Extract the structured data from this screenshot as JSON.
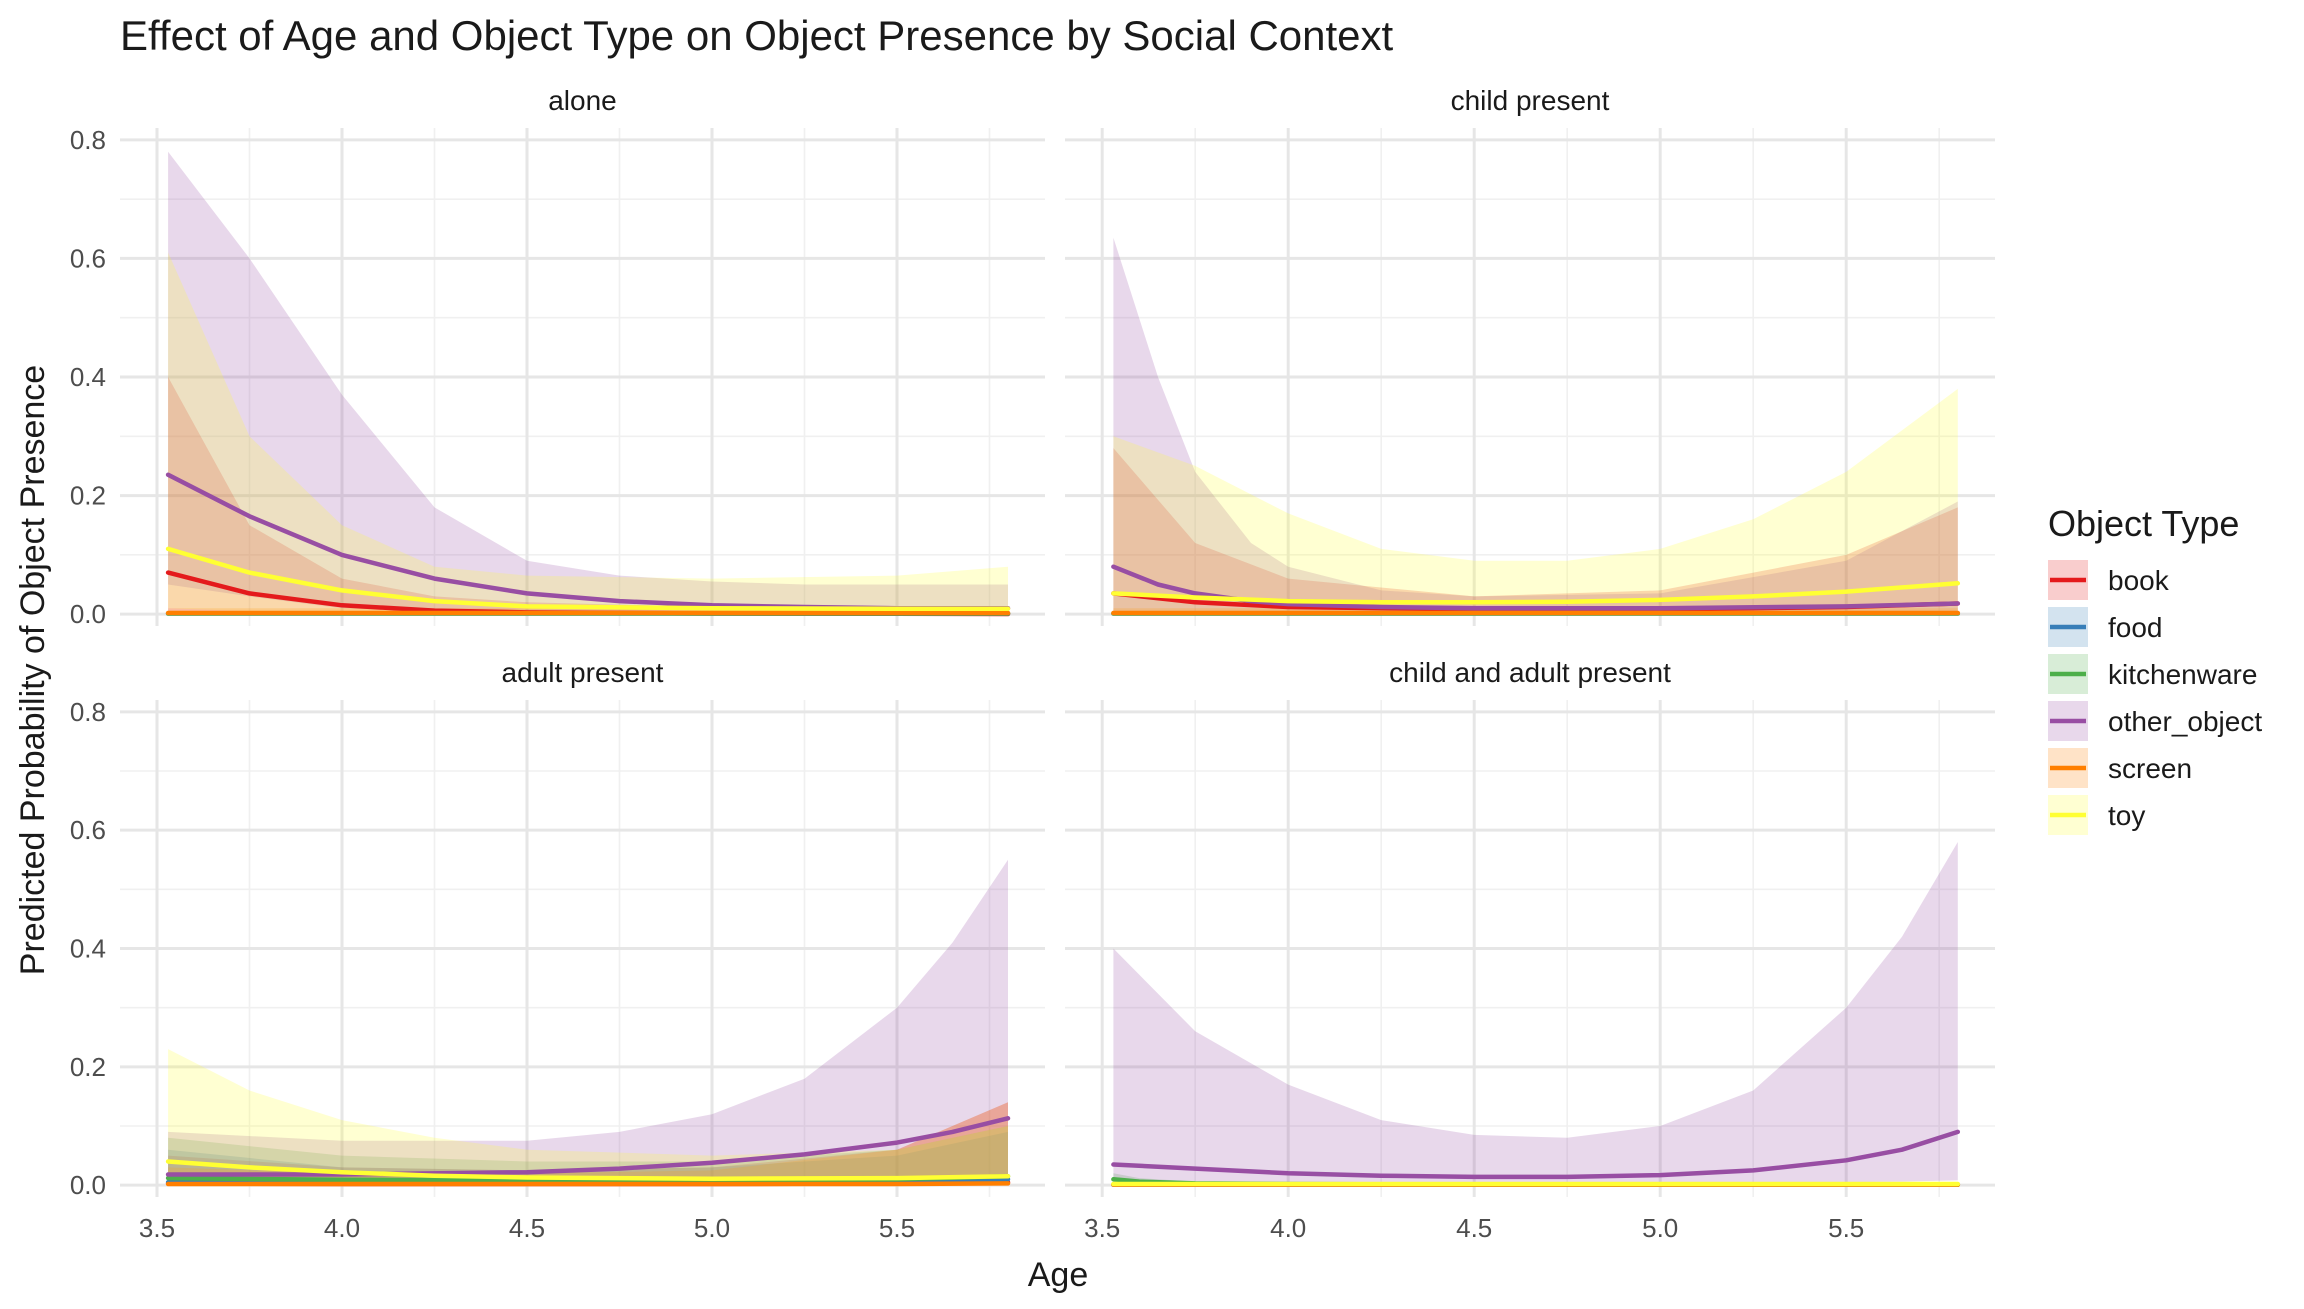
{
  "chart_data": {
    "type": "line",
    "title": "Effect of Age and Object Type on Object Presence by Social Context",
    "xlabel": "Age",
    "ylabel": "Predicted Probability of Object Presence",
    "xlim": [
      3.4,
      5.9
    ],
    "ylim": [
      -0.02,
      0.82
    ],
    "x_ticks": [
      3.5,
      4.0,
      4.5,
      5.0,
      5.5
    ],
    "x_tick_labels": [
      "3.5",
      "4.0",
      "4.5",
      "5.0",
      "5.5"
    ],
    "y_ticks": [
      0.0,
      0.2,
      0.4,
      0.6,
      0.8
    ],
    "y_tick_labels": [
      "0.0",
      "0.2",
      "0.4",
      "0.6",
      "0.8"
    ],
    "grid": true,
    "legend": {
      "title": "Object Type",
      "position": "right",
      "entries": [
        {
          "name": "book",
          "color": "#e41a1c"
        },
        {
          "name": "food",
          "color": "#377eb8"
        },
        {
          "name": "kitchenware",
          "color": "#4daf4a"
        },
        {
          "name": "other_object",
          "color": "#984ea3"
        },
        {
          "name": "screen",
          "color": "#ff7f00"
        },
        {
          "name": "toy",
          "color": "#ffff33"
        }
      ]
    },
    "band_opacity": 0.22,
    "facets": [
      {
        "label": "alone",
        "series": [
          {
            "name": "book",
            "x": [
              3.53,
              3.75,
              4.0,
              4.25,
              4.5,
              5.0,
              5.5,
              5.8
            ],
            "y": [
              0.07,
              0.035,
              0.015,
              0.006,
              0.003,
              0.001,
              0.0005,
              0.0003
            ],
            "lower": [
              0,
              0,
              0,
              0,
              0,
              0,
              0,
              0
            ],
            "upper": [
              0.4,
              0.15,
              0.06,
              0.03,
              0.02,
              0.012,
              0.01,
              0.01
            ]
          },
          {
            "name": "food",
            "x": [
              3.53,
              4.0,
              4.5,
              5.0,
              5.5,
              5.8
            ],
            "y": [
              0.001,
              0.001,
              0.001,
              0.001,
              0.001,
              0.001
            ],
            "lower": [
              0,
              0,
              0,
              0,
              0,
              0
            ],
            "upper": [
              0.005,
              0.004,
              0.004,
              0.004,
              0.004,
              0.004
            ]
          },
          {
            "name": "kitchenware",
            "x": [
              3.53,
              4.0,
              4.5,
              5.0,
              5.5,
              5.8
            ],
            "y": [
              0.001,
              0.001,
              0.001,
              0.001,
              0.001,
              0.001
            ],
            "lower": [
              0,
              0,
              0,
              0,
              0,
              0
            ],
            "upper": [
              0.005,
              0.004,
              0.004,
              0.004,
              0.004,
              0.004
            ]
          },
          {
            "name": "other_object",
            "x": [
              3.53,
              3.75,
              4.0,
              4.25,
              4.5,
              4.75,
              5.0,
              5.25,
              5.5,
              5.8
            ],
            "y": [
              0.235,
              0.165,
              0.1,
              0.06,
              0.035,
              0.022,
              0.015,
              0.012,
              0.01,
              0.01
            ],
            "lower": [
              0.05,
              0.03,
              0.01,
              0.005,
              0.003,
              0.002,
              0.002,
              0.001,
              0.001,
              0.001
            ],
            "upper": [
              0.78,
              0.6,
              0.37,
              0.18,
              0.09,
              0.065,
              0.055,
              0.05,
              0.05,
              0.05
            ]
          },
          {
            "name": "screen",
            "x": [
              3.53,
              4.0,
              4.5,
              5.0,
              5.5,
              5.8
            ],
            "y": [
              0.002,
              0.002,
              0.002,
              0.002,
              0.002,
              0.002
            ],
            "lower": [
              0,
              0,
              0,
              0,
              0,
              0
            ],
            "upper": [
              0.01,
              0.01,
              0.01,
              0.01,
              0.01,
              0.01
            ]
          },
          {
            "name": "toy",
            "x": [
              3.53,
              3.75,
              4.0,
              4.25,
              4.5,
              5.0,
              5.5,
              5.8
            ],
            "y": [
              0.11,
              0.07,
              0.04,
              0.022,
              0.013,
              0.01,
              0.009,
              0.009
            ],
            "lower": [
              0.01,
              0.005,
              0.003,
              0.002,
              0.001,
              0.001,
              0.001,
              0.001
            ],
            "upper": [
              0.61,
              0.3,
              0.15,
              0.08,
              0.065,
              0.06,
              0.065,
              0.08
            ]
          }
        ]
      },
      {
        "label": "child present",
        "series": [
          {
            "name": "book",
            "x": [
              3.53,
              3.75,
              4.0,
              4.5,
              5.0,
              5.5,
              5.8
            ],
            "y": [
              0.035,
              0.02,
              0.012,
              0.008,
              0.008,
              0.012,
              0.018
            ],
            "lower": [
              0,
              0,
              0,
              0,
              0,
              0,
              0
            ],
            "upper": [
              0.28,
              0.12,
              0.06,
              0.03,
              0.04,
              0.1,
              0.18
            ]
          },
          {
            "name": "food",
            "x": [
              3.53,
              4.0,
              4.5,
              5.0,
              5.5,
              5.8
            ],
            "y": [
              0.001,
              0.001,
              0.001,
              0.001,
              0.001,
              0.001
            ],
            "lower": [
              0,
              0,
              0,
              0,
              0,
              0
            ],
            "upper": [
              0.005,
              0.004,
              0.004,
              0.004,
              0.004,
              0.004
            ]
          },
          {
            "name": "kitchenware",
            "x": [
              3.53,
              4.0,
              4.5,
              5.0,
              5.5,
              5.8
            ],
            "y": [
              0.001,
              0.001,
              0.001,
              0.001,
              0.001,
              0.001
            ],
            "lower": [
              0,
              0,
              0,
              0,
              0,
              0
            ],
            "upper": [
              0.005,
              0.004,
              0.004,
              0.004,
              0.004,
              0.004
            ]
          },
          {
            "name": "other_object",
            "x": [
              3.53,
              3.65,
              3.75,
              3.9,
              4.0,
              4.25,
              4.5,
              5.0,
              5.5,
              5.8
            ],
            "y": [
              0.08,
              0.05,
              0.035,
              0.022,
              0.017,
              0.012,
              0.01,
              0.01,
              0.013,
              0.018
            ],
            "lower": [
              0.005,
              0.003,
              0.002,
              0.001,
              0.001,
              0.001,
              0.001,
              0.001,
              0.001,
              0.001
            ],
            "upper": [
              0.635,
              0.4,
              0.24,
              0.12,
              0.08,
              0.04,
              0.03,
              0.035,
              0.09,
              0.19
            ]
          },
          {
            "name": "screen",
            "x": [
              3.53,
              4.0,
              4.5,
              5.0,
              5.5,
              5.8
            ],
            "y": [
              0.002,
              0.002,
              0.002,
              0.002,
              0.002,
              0.002
            ],
            "lower": [
              0,
              0,
              0,
              0,
              0,
              0
            ],
            "upper": [
              0.01,
              0.01,
              0.01,
              0.01,
              0.01,
              0.01
            ]
          },
          {
            "name": "toy",
            "x": [
              3.53,
              3.75,
              4.0,
              4.25,
              4.5,
              4.75,
              5.0,
              5.25,
              5.5,
              5.8
            ],
            "y": [
              0.035,
              0.028,
              0.022,
              0.02,
              0.02,
              0.021,
              0.024,
              0.03,
              0.038,
              0.052
            ],
            "lower": [
              0.003,
              0.003,
              0.003,
              0.003,
              0.003,
              0.003,
              0.003,
              0.003,
              0.003,
              0.004
            ],
            "upper": [
              0.3,
              0.25,
              0.17,
              0.11,
              0.09,
              0.09,
              0.11,
              0.16,
              0.24,
              0.38
            ]
          }
        ]
      },
      {
        "label": "adult present",
        "series": [
          {
            "name": "book",
            "x": [
              3.53,
              4.0,
              4.5,
              5.0,
              5.5,
              5.8
            ],
            "y": [
              0.003,
              0.002,
              0.002,
              0.002,
              0.003,
              0.005
            ],
            "lower": [
              0,
              0,
              0,
              0,
              0,
              0
            ],
            "upper": [
              0.05,
              0.03,
              0.025,
              0.03,
              0.06,
              0.14
            ]
          },
          {
            "name": "food",
            "x": [
              3.53,
              4.0,
              4.5,
              5.0,
              5.5,
              5.8
            ],
            "y": [
              0.005,
              0.004,
              0.004,
              0.004,
              0.006,
              0.01
            ],
            "lower": [
              0,
              0,
              0,
              0,
              0,
              0
            ],
            "upper": [
              0.06,
              0.03,
              0.025,
              0.03,
              0.05,
              0.09
            ]
          },
          {
            "name": "kitchenware",
            "x": [
              3.53,
              4.0,
              4.5,
              5.0,
              5.5,
              5.8
            ],
            "y": [
              0.012,
              0.009,
              0.008,
              0.008,
              0.01,
              0.015
            ],
            "lower": [
              0.001,
              0.001,
              0.001,
              0.001,
              0.001,
              0.001
            ],
            "upper": [
              0.08,
              0.05,
              0.04,
              0.04,
              0.06,
              0.1
            ]
          },
          {
            "name": "other_object",
            "x": [
              3.53,
              4.0,
              4.5,
              4.75,
              5.0,
              5.25,
              5.5,
              5.65,
              5.8
            ],
            "y": [
              0.018,
              0.018,
              0.022,
              0.028,
              0.038,
              0.052,
              0.072,
              0.09,
              0.113
            ],
            "lower": [
              0.003,
              0.004,
              0.006,
              0.008,
              0.01,
              0.012,
              0.013,
              0.014,
              0.015
            ],
            "upper": [
              0.09,
              0.075,
              0.075,
              0.09,
              0.12,
              0.18,
              0.3,
              0.41,
              0.55
            ]
          },
          {
            "name": "screen",
            "x": [
              3.53,
              4.0,
              4.5,
              5.0,
              5.5,
              5.8
            ],
            "y": [
              0.002,
              0.002,
              0.002,
              0.002,
              0.002,
              0.003
            ],
            "lower": [
              0,
              0,
              0,
              0,
              0,
              0
            ],
            "upper": [
              0.03,
              0.02,
              0.02,
              0.025,
              0.06,
              0.14
            ]
          },
          {
            "name": "toy",
            "x": [
              3.53,
              3.75,
              4.0,
              4.25,
              4.5,
              5.0,
              5.5,
              5.8
            ],
            "y": [
              0.04,
              0.03,
              0.022,
              0.016,
              0.013,
              0.011,
              0.012,
              0.015
            ],
            "lower": [
              0.005,
              0.004,
              0.003,
              0.003,
              0.002,
              0.002,
              0.002,
              0.002
            ],
            "upper": [
              0.23,
              0.16,
              0.11,
              0.08,
              0.06,
              0.05,
              0.06,
              0.1
            ]
          }
        ]
      },
      {
        "label": "child and adult present",
        "series": [
          {
            "name": "book",
            "x": [
              3.53,
              4.0,
              4.5,
              5.0,
              5.5,
              5.8
            ],
            "y": [
              0.001,
              0.001,
              0.001,
              0.001,
              0.001,
              0.001
            ],
            "lower": [
              0,
              0,
              0,
              0,
              0,
              0
            ],
            "upper": [
              0.004,
              0.003,
              0.003,
              0.003,
              0.003,
              0.004
            ]
          },
          {
            "name": "food",
            "x": [
              3.53,
              4.0,
              4.5,
              5.0,
              5.5,
              5.8
            ],
            "y": [
              0.001,
              0.001,
              0.001,
              0.001,
              0.001,
              0.001
            ],
            "lower": [
              0,
              0,
              0,
              0,
              0,
              0
            ],
            "upper": [
              0.004,
              0.003,
              0.003,
              0.003,
              0.003,
              0.004
            ]
          },
          {
            "name": "kitchenware",
            "x": [
              3.53,
              3.6,
              3.75,
              4.0,
              4.5,
              5.0,
              5.5,
              5.8
            ],
            "y": [
              0.01,
              0.006,
              0.003,
              0.002,
              0.001,
              0.001,
              0.001,
              0.001
            ],
            "lower": [
              0,
              0,
              0,
              0,
              0,
              0,
              0,
              0
            ],
            "upper": [
              0.02,
              0.012,
              0.006,
              0.004,
              0.003,
              0.003,
              0.003,
              0.004
            ]
          },
          {
            "name": "other_object",
            "x": [
              3.53,
              3.75,
              4.0,
              4.25,
              4.5,
              4.75,
              5.0,
              5.25,
              5.5,
              5.65,
              5.8
            ],
            "y": [
              0.035,
              0.028,
              0.02,
              0.016,
              0.014,
              0.014,
              0.017,
              0.025,
              0.042,
              0.06,
              0.09
            ],
            "lower": [
              0.003,
              0.003,
              0.003,
              0.003,
              0.003,
              0.003,
              0.003,
              0.004,
              0.005,
              0.006,
              0.008
            ],
            "upper": [
              0.4,
              0.26,
              0.17,
              0.11,
              0.085,
              0.08,
              0.1,
              0.16,
              0.3,
              0.42,
              0.58
            ]
          },
          {
            "name": "screen",
            "x": [
              3.53,
              4.0,
              4.5,
              5.0,
              5.5,
              5.8
            ],
            "y": [
              0.001,
              0.001,
              0.001,
              0.001,
              0.001,
              0.001
            ],
            "lower": [
              0,
              0,
              0,
              0,
              0,
              0
            ],
            "upper": [
              0.004,
              0.003,
              0.003,
              0.003,
              0.003,
              0.004
            ]
          },
          {
            "name": "toy",
            "x": [
              3.53,
              4.0,
              4.5,
              5.0,
              5.5,
              5.8
            ],
            "y": [
              0.002,
              0.002,
              0.002,
              0.002,
              0.002,
              0.002
            ],
            "lower": [
              0,
              0,
              0,
              0,
              0,
              0
            ],
            "upper": [
              0.006,
              0.005,
              0.005,
              0.005,
              0.005,
              0.006
            ]
          }
        ]
      }
    ]
  }
}
